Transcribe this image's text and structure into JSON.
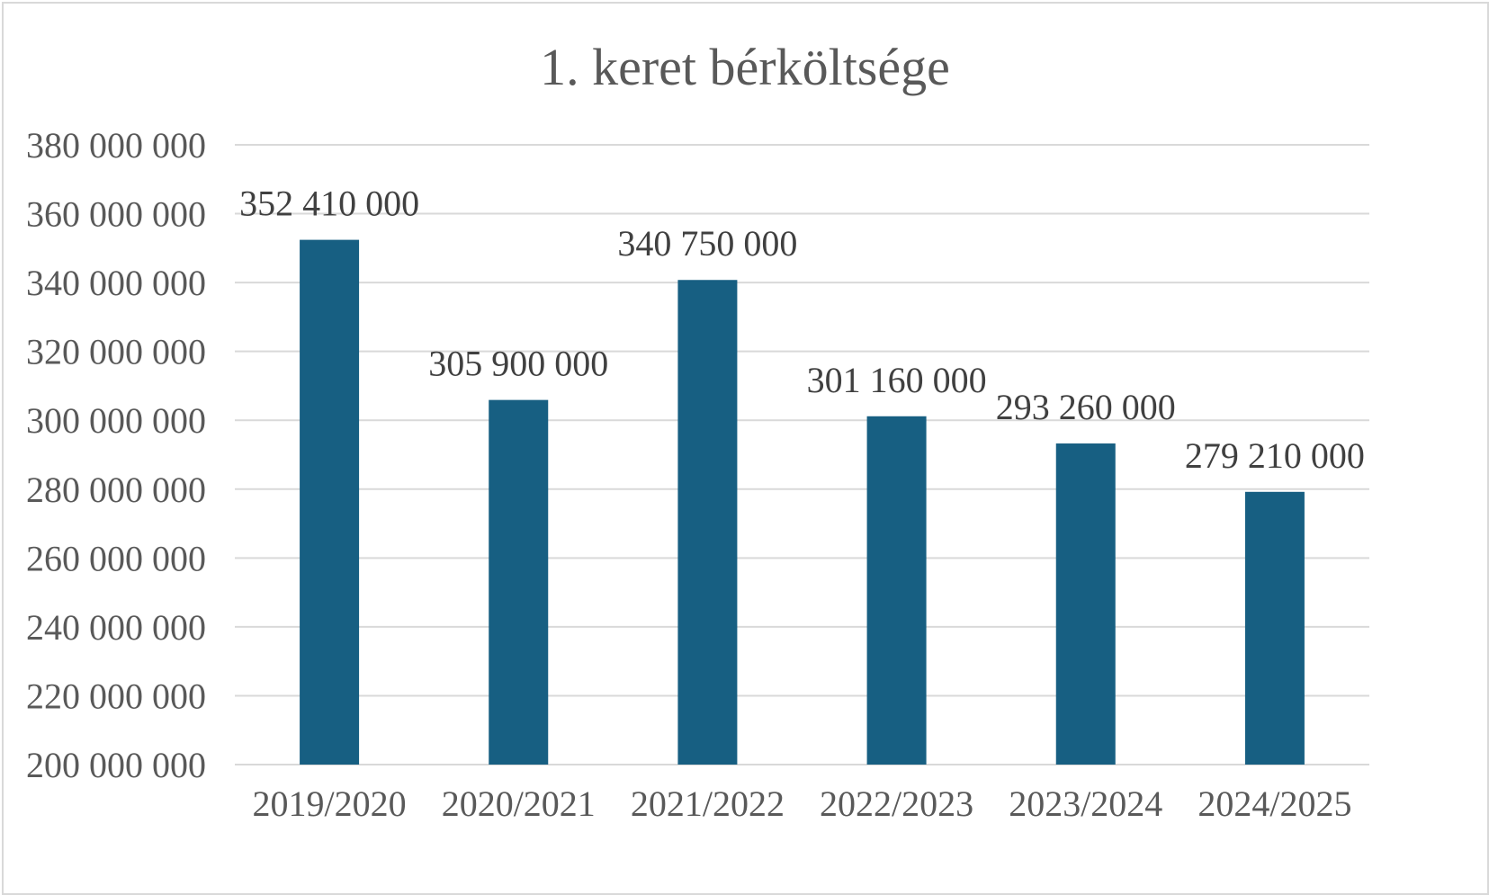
{
  "chart_data": {
    "type": "bar",
    "title": "1. keret bérköltsége",
    "xlabel": "",
    "ylabel": "",
    "categories": [
      "2019/2020",
      "2020/2021",
      "2021/2022",
      "2022/2023",
      "2023/2024",
      "2024/2025"
    ],
    "values": [
      352410000,
      305900000,
      340750000,
      301160000,
      293260000,
      279210000
    ],
    "data_labels": [
      "352 410 000",
      "305 900 000",
      "340 750 000",
      "301 160 000",
      "293 260 000",
      "279 210 000"
    ],
    "ylim": [
      200000000,
      380000000
    ],
    "y_ticks": [
      200000000,
      220000000,
      240000000,
      260000000,
      280000000,
      300000000,
      320000000,
      340000000,
      360000000,
      380000000
    ],
    "y_tick_labels": [
      "200 000 000",
      "220 000 000",
      "240 000 000",
      "260 000 000",
      "280 000 000",
      "300 000 000",
      "320 000 000",
      "340 000 000",
      "360 000 000",
      "380 000 000"
    ],
    "grid": true,
    "legend": "none",
    "bar_color": "#175f82"
  }
}
